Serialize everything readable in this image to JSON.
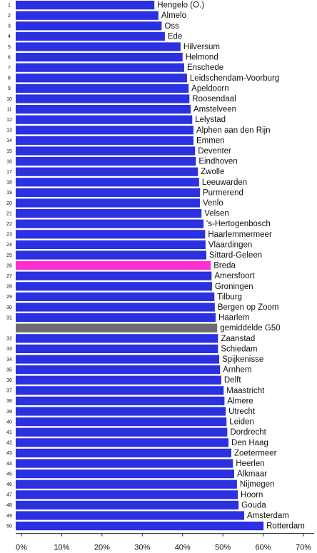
{
  "chart_data": {
    "type": "bar",
    "orientation": "horizontal",
    "categories": [
      "Hengelo (O.)",
      "Almelo",
      "Oss",
      "Ede",
      "Hilversum",
      "Helmond",
      "Enschede",
      "Leidschendam-Voorburg",
      "Apeldoorn",
      "Roosendaal",
      "Amstelveen",
      "Lelystad",
      "Alphen aan den Rijn",
      "Emmen",
      "Deventer",
      "Eindhoven",
      "Zwolle",
      "Leeuwarden",
      "Purmerend",
      "Venlo",
      "Velsen",
      "'s-Hertogenbosch",
      "Haarlemmermeer",
      "Vlaardingen",
      "Sittard-Geleen",
      "Breda",
      "Amersfoort",
      "Groningen",
      "Tilburg",
      "Bergen op Zoom",
      "Haarlem",
      "gemiddelde G50",
      "Zaanstad",
      "Schiedam",
      "Spijkenisse",
      "Arnhem",
      "Delft",
      "Maastricht",
      "Almere",
      "Utrecht",
      "Leiden",
      "Dordrecht",
      "Den Haag",
      "Zoetermeer",
      "Heerlen",
      "Alkmaar",
      "Nijmegen",
      "Hoorn",
      "Gouda",
      "Amsterdam",
      "Rotterdam"
    ],
    "ranks": [
      1,
      2,
      3,
      4,
      5,
      6,
      7,
      8,
      9,
      10,
      11,
      12,
      13,
      14,
      15,
      16,
      17,
      18,
      19,
      20,
      21,
      22,
      23,
      24,
      25,
      26,
      27,
      28,
      29,
      30,
      31,
      null,
      32,
      33,
      34,
      35,
      36,
      37,
      38,
      39,
      40,
      41,
      42,
      43,
      44,
      45,
      46,
      47,
      48,
      49,
      50
    ],
    "values": [
      33,
      34,
      34.8,
      35.6,
      39.5,
      40,
      40.4,
      41.1,
      41.5,
      41.7,
      42,
      42.4,
      42.7,
      42.7,
      43.1,
      43.3,
      43.8,
      44.1,
      44.3,
      44.3,
      44.7,
      45.2,
      45.6,
      45.7,
      45.9,
      47,
      47.2,
      47.3,
      47.9,
      48,
      48.2,
      48.6,
      48.8,
      48.8,
      49.1,
      49.3,
      49.6,
      50.2,
      50.4,
      50.7,
      50.9,
      51.1,
      51.4,
      52.1,
      52.5,
      52.8,
      53.5,
      53.7,
      53.9,
      55.3,
      60.1
    ],
    "color": "#2b30e0",
    "highlights": [
      {
        "index": 25,
        "color": "#ff2ed2"
      },
      {
        "index": 31,
        "color": "#6e6e72"
      }
    ],
    "xlim": [
      0,
      70
    ],
    "xticks": [
      {
        "value": 0,
        "label": "0%"
      },
      {
        "value": 10,
        "label": "10%"
      },
      {
        "value": 20,
        "label": "20%"
      },
      {
        "value": 30,
        "label": "30%"
      },
      {
        "value": 40,
        "label": "40%"
      },
      {
        "value": 50,
        "label": "50%"
      },
      {
        "value": 60,
        "label": "60%"
      },
      {
        "value": 70,
        "label": "70%"
      }
    ]
  }
}
